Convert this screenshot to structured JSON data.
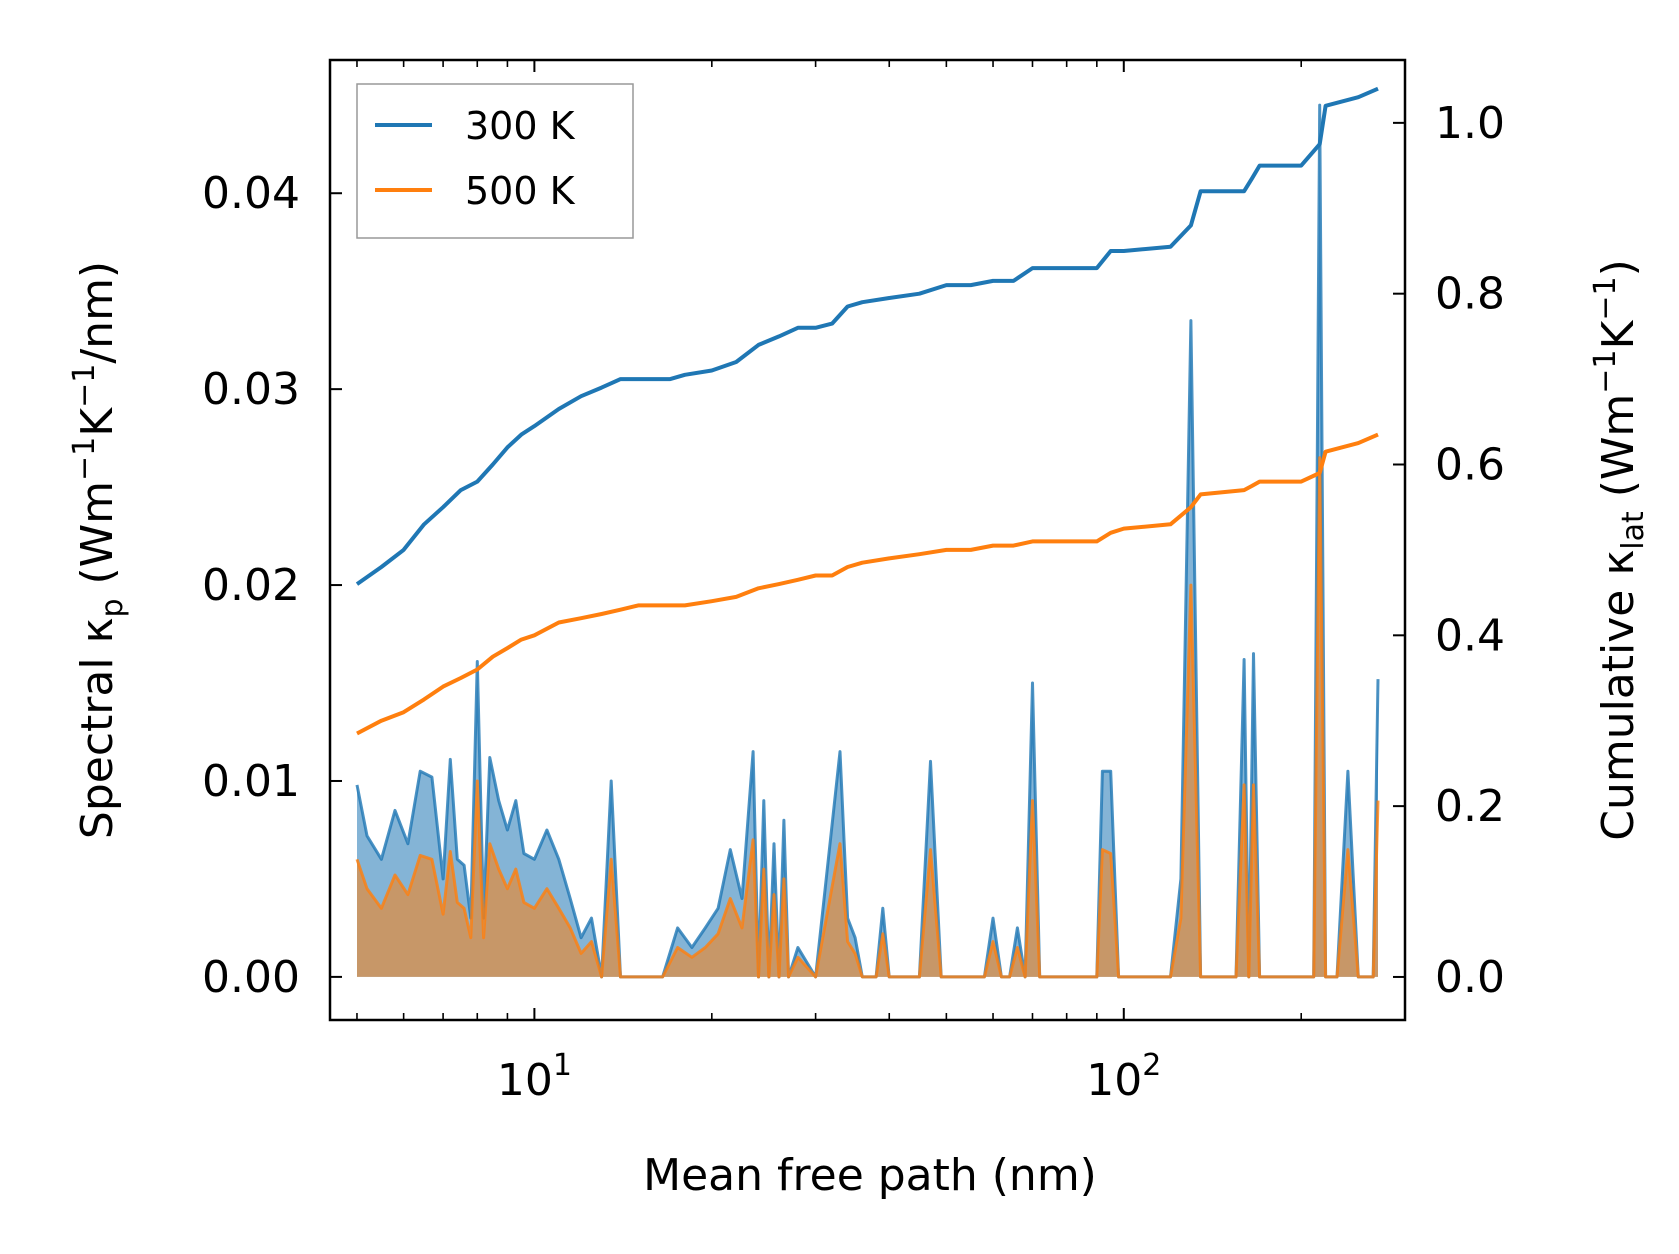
{
  "chart_data": {
    "type": "line",
    "x_scale": "log",
    "xlabel": "Mean free path (nm)",
    "ylabel_left": {
      "pre": "Spectral κ",
      "sub": "p",
      "post": " (Wm",
      "sup1": "−1",
      "mid": "K",
      "sup2": "−1",
      "end": "/nm)"
    },
    "ylabel_right": {
      "pre": "Cumulative κ",
      "sub": "lat",
      "post": " (Wm",
      "sup1": "−1",
      "mid": "K",
      "sup2": "−1",
      "end": ")"
    },
    "xlim": [
      4.5,
      300
    ],
    "ylim_left": [
      -0.0022,
      0.0468
    ],
    "ylim_right": [
      -0.0504,
      1.0736
    ],
    "x_ticks": [
      {
        "value": 10,
        "base": "10",
        "exp": "1"
      },
      {
        "value": 100,
        "base": "10",
        "exp": "2"
      }
    ],
    "y_ticks_left": [
      "0.00",
      "0.01",
      "0.02",
      "0.03",
      "0.04"
    ],
    "y_ticks_right": [
      "0.0",
      "0.2",
      "0.4",
      "0.6",
      "0.8",
      "1.0"
    ],
    "colors": {
      "300K": "#1f77b4",
      "500K": "#ff7f0e"
    },
    "legend": {
      "position": "top-left",
      "entries": [
        "300 K",
        "500 K"
      ]
    },
    "series": [
      {
        "name": "300 K",
        "axis": "right",
        "kind": "cumulative",
        "x": [
          5.0,
          5.5,
          6.0,
          6.5,
          7.0,
          7.5,
          8.0,
          8.5,
          9.0,
          9.5,
          10,
          11,
          12,
          13,
          14,
          15,
          17,
          18,
          20,
          22,
          24,
          26,
          28,
          30,
          32,
          34,
          36,
          40,
          45,
          50,
          55,
          60,
          65,
          70,
          80,
          90,
          95,
          100,
          120,
          130,
          135,
          160,
          165,
          170,
          200,
          215,
          220,
          250,
          270
        ],
        "y": [
          0.46,
          0.48,
          0.5,
          0.53,
          0.55,
          0.57,
          0.58,
          0.6,
          0.62,
          0.635,
          0.645,
          0.665,
          0.68,
          0.69,
          0.7,
          0.7,
          0.7,
          0.705,
          0.71,
          0.72,
          0.74,
          0.75,
          0.76,
          0.76,
          0.765,
          0.785,
          0.79,
          0.795,
          0.8,
          0.81,
          0.81,
          0.815,
          0.815,
          0.83,
          0.83,
          0.83,
          0.85,
          0.85,
          0.855,
          0.88,
          0.92,
          0.92,
          0.935,
          0.95,
          0.95,
          0.975,
          1.02,
          1.03,
          1.04
        ]
      },
      {
        "name": "500 K",
        "axis": "right",
        "kind": "cumulative",
        "x": [
          5.0,
          5.5,
          6.0,
          6.5,
          7.0,
          7.5,
          8.0,
          8.5,
          9.0,
          9.5,
          10,
          11,
          12,
          13,
          14,
          15,
          17,
          18,
          20,
          22,
          24,
          26,
          28,
          30,
          32,
          34,
          36,
          40,
          45,
          50,
          55,
          60,
          65,
          70,
          80,
          90,
          95,
          100,
          120,
          130,
          135,
          160,
          165,
          170,
          200,
          215,
          220,
          250,
          270
        ],
        "y": [
          0.285,
          0.3,
          0.31,
          0.325,
          0.34,
          0.35,
          0.36,
          0.375,
          0.385,
          0.395,
          0.4,
          0.415,
          0.42,
          0.425,
          0.43,
          0.435,
          0.435,
          0.435,
          0.44,
          0.445,
          0.455,
          0.46,
          0.465,
          0.47,
          0.47,
          0.48,
          0.485,
          0.49,
          0.495,
          0.5,
          0.5,
          0.505,
          0.505,
          0.51,
          0.51,
          0.51,
          0.52,
          0.525,
          0.53,
          0.55,
          0.565,
          0.57,
          0.575,
          0.58,
          0.58,
          0.59,
          0.615,
          0.625,
          0.635
        ]
      },
      {
        "name": "300 K spectral",
        "axis": "left",
        "kind": "spectral-fill",
        "x": [
          5.0,
          5.2,
          5.5,
          5.8,
          6.1,
          6.4,
          6.7,
          7.0,
          7.2,
          7.4,
          7.6,
          7.8,
          8.0,
          8.2,
          8.4,
          8.7,
          9.0,
          9.3,
          9.6,
          10.0,
          10.5,
          11.0,
          11.5,
          12.0,
          12.5,
          13.0,
          13.5,
          14.0,
          15.0,
          16.5,
          17.5,
          18.5,
          19.5,
          20.5,
          21.5,
          22.5,
          23.5,
          24.0,
          24.5,
          25.0,
          25.5,
          26.0,
          26.5,
          27.0,
          28.0,
          30.0,
          33.0,
          34.0,
          35.0,
          36.0,
          38.0,
          39.0,
          40.0,
          42.0,
          45.0,
          47.0,
          49.0,
          52.0,
          58.0,
          60.0,
          62.0,
          64.0,
          66.0,
          68.0,
          70.0,
          72.0,
          90.0,
          92.0,
          95.0,
          98.0,
          120.0,
          125.0,
          130.0,
          135.0,
          140.0,
          155.0,
          160.0,
          163.0,
          166.0,
          170.0,
          200.0,
          210.0,
          215.0,
          220.0,
          230.0,
          240.0,
          250.0,
          265.0,
          270.0
        ],
        "y": [
          0.0098,
          0.0072,
          0.006,
          0.0085,
          0.0068,
          0.0105,
          0.0102,
          0.005,
          0.0111,
          0.006,
          0.0057,
          0.003,
          0.0161,
          0.003,
          0.0112,
          0.009,
          0.0075,
          0.009,
          0.0063,
          0.006,
          0.0075,
          0.006,
          0.004,
          0.002,
          0.003,
          0.0,
          0.01,
          0.0,
          0.0,
          0.0,
          0.0025,
          0.0015,
          0.0025,
          0.0035,
          0.0065,
          0.004,
          0.0115,
          0.0,
          0.009,
          0.0,
          0.0068,
          0.0,
          0.008,
          0.0,
          0.0015,
          0.0,
          0.0115,
          0.003,
          0.002,
          0.0,
          0.0,
          0.0035,
          0.0,
          0.0,
          0.0,
          0.011,
          0.0,
          0.0,
          0.0,
          0.003,
          0.0,
          0.0,
          0.0025,
          0.0,
          0.015,
          0.0,
          0.0,
          0.0105,
          0.0105,
          0.0,
          0.0,
          0.005,
          0.0335,
          0.0,
          0.0,
          0.0,
          0.0162,
          0.0,
          0.0165,
          0.0,
          0.0,
          0.0,
          0.0445,
          0.0,
          0.0,
          0.0105,
          0.0,
          0.0,
          0.0152
        ]
      },
      {
        "name": "500 K spectral",
        "axis": "left",
        "kind": "spectral-fill",
        "x": [
          5.0,
          5.2,
          5.5,
          5.8,
          6.1,
          6.4,
          6.7,
          7.0,
          7.2,
          7.4,
          7.6,
          7.8,
          8.0,
          8.2,
          8.4,
          8.7,
          9.0,
          9.3,
          9.6,
          10.0,
          10.5,
          11.0,
          11.5,
          12.0,
          12.5,
          13.0,
          13.5,
          14.0,
          15.0,
          16.5,
          17.5,
          18.5,
          19.5,
          20.5,
          21.5,
          22.5,
          23.5,
          24.0,
          24.5,
          25.0,
          25.5,
          26.0,
          26.5,
          27.0,
          28.0,
          30.0,
          33.0,
          34.0,
          35.0,
          36.0,
          38.0,
          39.0,
          40.0,
          42.0,
          45.0,
          47.0,
          49.0,
          52.0,
          58.0,
          60.0,
          62.0,
          64.0,
          66.0,
          68.0,
          70.0,
          72.0,
          90.0,
          92.0,
          95.0,
          98.0,
          120.0,
          125.0,
          130.0,
          135.0,
          140.0,
          155.0,
          160.0,
          163.0,
          166.0,
          170.0,
          200.0,
          210.0,
          215.0,
          220.0,
          230.0,
          240.0,
          250.0,
          265.0,
          270.0
        ],
        "y": [
          0.006,
          0.0045,
          0.0035,
          0.0052,
          0.0042,
          0.0062,
          0.006,
          0.0032,
          0.0064,
          0.0038,
          0.0035,
          0.002,
          0.01,
          0.002,
          0.0068,
          0.0055,
          0.0045,
          0.0055,
          0.0038,
          0.0035,
          0.0045,
          0.0035,
          0.0025,
          0.0012,
          0.0018,
          0.0,
          0.006,
          0.0,
          0.0,
          0.0,
          0.0015,
          0.001,
          0.0015,
          0.0022,
          0.004,
          0.0025,
          0.007,
          0.0,
          0.0055,
          0.0,
          0.0042,
          0.0,
          0.005,
          0.0,
          0.001,
          0.0,
          0.0068,
          0.0018,
          0.0012,
          0.0,
          0.0,
          0.0022,
          0.0,
          0.0,
          0.0,
          0.0065,
          0.0,
          0.0,
          0.0,
          0.0018,
          0.0,
          0.0,
          0.0015,
          0.0,
          0.009,
          0.0,
          0.0,
          0.0065,
          0.0063,
          0.0,
          0.0,
          0.003,
          0.02,
          0.0,
          0.0,
          0.0,
          0.0098,
          0.0,
          0.0098,
          0.0,
          0.0,
          0.0,
          0.0265,
          0.0,
          0.0,
          0.0065,
          0.0,
          0.0,
          0.009
        ]
      }
    ]
  }
}
